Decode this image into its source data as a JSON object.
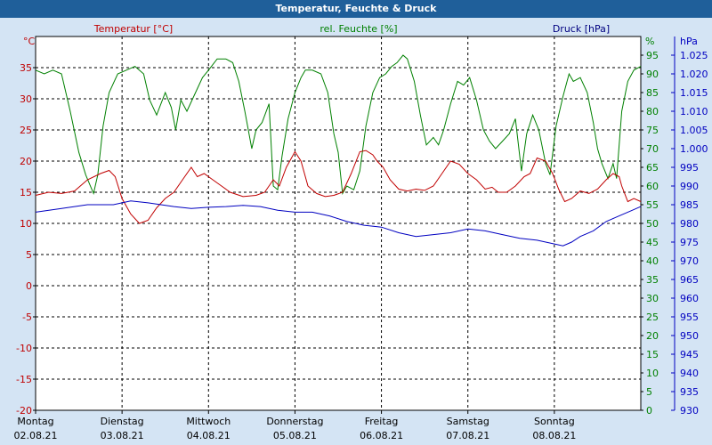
{
  "window": {
    "title": "Temperatur, Feuchte & Druck"
  },
  "chart_data": {
    "type": "line",
    "x_axis": {
      "range": [
        0,
        7
      ],
      "days": [
        "Montag",
        "Dienstag",
        "Mittwoch",
        "Donnerstag",
        "Freitag",
        "Samstag",
        "Sonntag"
      ],
      "dates": [
        "02.08.21",
        "03.08.21",
        "04.08.21",
        "05.08.21",
        "06.08.21",
        "07.08.21",
        "08.08.21"
      ]
    },
    "y_axes": {
      "temperature": {
        "label": "Temperatur [°C]",
        "unit": "°C",
        "range": [
          -20,
          40
        ],
        "ticks": [
          -20,
          -15,
          -10,
          -5,
          0,
          5,
          10,
          15,
          20,
          25,
          30,
          35
        ],
        "color": "#c00000"
      },
      "humidity": {
        "label": "rel. Feuchte [%]",
        "unit": "%",
        "range": [
          0,
          100
        ],
        "ticks": [
          0,
          5,
          10,
          15,
          20,
          25,
          30,
          35,
          40,
          45,
          50,
          55,
          60,
          65,
          70,
          75,
          80,
          85,
          90,
          95
        ],
        "color": "#008000"
      },
      "pressure": {
        "label": "Druck [hPa]",
        "unit": "hPa",
        "range": [
          930,
          1030
        ],
        "ticks": [
          "930",
          "935",
          "940",
          "945",
          "950",
          "955",
          "960",
          "965",
          "970",
          "975",
          "980",
          "985",
          "990",
          "995",
          "1.000",
          "1.005",
          "1.010",
          "1.015",
          "1.020",
          "1.025"
        ],
        "color": "#0000c0"
      }
    },
    "grid": true,
    "series": [
      {
        "name": "Temperatur [°C]",
        "axis": "temperature",
        "color": "#c00000",
        "points": [
          [
            0,
            14.5
          ],
          [
            0.15,
            15
          ],
          [
            0.3,
            14.8
          ],
          [
            0.45,
            15.2
          ],
          [
            0.6,
            17
          ],
          [
            0.75,
            18
          ],
          [
            0.85,
            18.5
          ],
          [
            0.92,
            17.5
          ],
          [
            1.0,
            14
          ],
          [
            1.1,
            11.5
          ],
          [
            1.2,
            10
          ],
          [
            1.3,
            10.5
          ],
          [
            1.4,
            12.5
          ],
          [
            1.5,
            14
          ],
          [
            1.6,
            15
          ],
          [
            1.7,
            17
          ],
          [
            1.8,
            19
          ],
          [
            1.87,
            17.5
          ],
          [
            1.95,
            18
          ],
          [
            2.05,
            17
          ],
          [
            2.15,
            16
          ],
          [
            2.25,
            15
          ],
          [
            2.4,
            14.3
          ],
          [
            2.55,
            14.5
          ],
          [
            2.65,
            15
          ],
          [
            2.75,
            17
          ],
          [
            2.82,
            16
          ],
          [
            2.9,
            19
          ],
          [
            3.0,
            21.5
          ],
          [
            3.07,
            20
          ],
          [
            3.15,
            16
          ],
          [
            3.25,
            14.8
          ],
          [
            3.35,
            14.3
          ],
          [
            3.45,
            14.5
          ],
          [
            3.55,
            15
          ],
          [
            3.65,
            18
          ],
          [
            3.75,
            21.5
          ],
          [
            3.82,
            21.7
          ],
          [
            3.9,
            21
          ],
          [
            3.95,
            20
          ],
          [
            4.02,
            19
          ],
          [
            4.1,
            17
          ],
          [
            4.2,
            15.5
          ],
          [
            4.3,
            15.2
          ],
          [
            4.4,
            15.5
          ],
          [
            4.5,
            15.3
          ],
          [
            4.6,
            16
          ],
          [
            4.7,
            18
          ],
          [
            4.8,
            20
          ],
          [
            4.9,
            19.5
          ],
          [
            5.0,
            18
          ],
          [
            5.1,
            17
          ],
          [
            5.2,
            15.5
          ],
          [
            5.28,
            15.8
          ],
          [
            5.35,
            15
          ],
          [
            5.45,
            15
          ],
          [
            5.55,
            16
          ],
          [
            5.65,
            17.5
          ],
          [
            5.72,
            18
          ],
          [
            5.8,
            20.5
          ],
          [
            5.9,
            20
          ],
          [
            5.98,
            18
          ],
          [
            6.05,
            15.5
          ],
          [
            6.12,
            13.5
          ],
          [
            6.2,
            14
          ],
          [
            6.3,
            15.2
          ],
          [
            6.4,
            14.8
          ],
          [
            6.5,
            15.5
          ],
          [
            6.6,
            17
          ],
          [
            6.68,
            18
          ],
          [
            6.75,
            17.5
          ],
          [
            6.78,
            16
          ],
          [
            6.85,
            13.5
          ],
          [
            6.92,
            14
          ],
          [
            7.0,
            13.5
          ]
        ]
      },
      {
        "name": "rel. Feuchte [%]",
        "axis": "humidity",
        "color": "#008000",
        "points": [
          [
            0,
            91
          ],
          [
            0.1,
            90
          ],
          [
            0.2,
            91
          ],
          [
            0.3,
            90
          ],
          [
            0.4,
            80
          ],
          [
            0.5,
            69
          ],
          [
            0.58,
            63
          ],
          [
            0.67,
            58
          ],
          [
            0.72,
            63
          ],
          [
            0.78,
            76
          ],
          [
            0.85,
            85
          ],
          [
            0.95,
            90
          ],
          [
            1.05,
            91
          ],
          [
            1.15,
            92
          ],
          [
            1.25,
            90
          ],
          [
            1.32,
            83
          ],
          [
            1.4,
            79
          ],
          [
            1.5,
            85
          ],
          [
            1.57,
            81
          ],
          [
            1.62,
            75
          ],
          [
            1.68,
            83
          ],
          [
            1.75,
            80
          ],
          [
            1.85,
            85
          ],
          [
            1.93,
            89
          ],
          [
            2.0,
            91
          ],
          [
            2.1,
            94
          ],
          [
            2.2,
            94
          ],
          [
            2.28,
            93
          ],
          [
            2.35,
            88
          ],
          [
            2.42,
            80
          ],
          [
            2.5,
            70
          ],
          [
            2.55,
            75
          ],
          [
            2.62,
            77
          ],
          [
            2.7,
            82
          ],
          [
            2.75,
            60
          ],
          [
            2.8,
            59
          ],
          [
            2.85,
            68
          ],
          [
            2.92,
            78
          ],
          [
            3.0,
            85
          ],
          [
            3.07,
            89
          ],
          [
            3.12,
            91
          ],
          [
            3.2,
            91
          ],
          [
            3.3,
            90
          ],
          [
            3.38,
            85
          ],
          [
            3.45,
            74
          ],
          [
            3.5,
            69
          ],
          [
            3.55,
            58
          ],
          [
            3.6,
            60
          ],
          [
            3.68,
            59
          ],
          [
            3.75,
            64
          ],
          [
            3.82,
            76
          ],
          [
            3.9,
            85
          ],
          [
            3.98,
            89
          ],
          [
            4.05,
            90
          ],
          [
            4.12,
            92
          ],
          [
            4.18,
            93
          ],
          [
            4.25,
            95
          ],
          [
            4.3,
            94
          ],
          [
            4.38,
            88
          ],
          [
            4.45,
            79
          ],
          [
            4.52,
            71
          ],
          [
            4.6,
            73
          ],
          [
            4.66,
            71
          ],
          [
            4.72,
            75
          ],
          [
            4.8,
            82
          ],
          [
            4.88,
            88
          ],
          [
            4.95,
            87
          ],
          [
            5.02,
            89
          ],
          [
            5.1,
            83
          ],
          [
            5.18,
            75
          ],
          [
            5.25,
            72
          ],
          [
            5.32,
            70
          ],
          [
            5.4,
            72
          ],
          [
            5.48,
            74
          ],
          [
            5.55,
            78
          ],
          [
            5.62,
            64
          ],
          [
            5.68,
            74
          ],
          [
            5.75,
            79
          ],
          [
            5.82,
            75
          ],
          [
            5.9,
            66
          ],
          [
            5.95,
            63
          ],
          [
            6.02,
            76
          ],
          [
            6.1,
            84
          ],
          [
            6.17,
            90
          ],
          [
            6.22,
            88
          ],
          [
            6.3,
            89
          ],
          [
            6.38,
            85
          ],
          [
            6.45,
            77
          ],
          [
            6.5,
            70
          ],
          [
            6.55,
            66
          ],
          [
            6.62,
            62
          ],
          [
            6.68,
            66
          ],
          [
            6.72,
            62
          ],
          [
            6.78,
            80
          ],
          [
            6.85,
            88
          ],
          [
            6.92,
            91
          ],
          [
            7.0,
            92
          ]
        ]
      },
      {
        "name": "Druck [hPa]",
        "axis": "pressure",
        "color": "#0000c0",
        "points": [
          [
            0,
            983
          ],
          [
            0.3,
            984
          ],
          [
            0.6,
            985
          ],
          [
            0.9,
            985
          ],
          [
            1.1,
            986
          ],
          [
            1.3,
            985.5
          ],
          [
            1.6,
            984.5
          ],
          [
            1.8,
            984
          ],
          [
            2.0,
            984.3
          ],
          [
            2.2,
            984.5
          ],
          [
            2.4,
            984.8
          ],
          [
            2.6,
            984.5
          ],
          [
            2.8,
            983.5
          ],
          [
            3.0,
            983
          ],
          [
            3.2,
            983
          ],
          [
            3.4,
            982
          ],
          [
            3.6,
            980.5
          ],
          [
            3.8,
            979.5
          ],
          [
            4.0,
            979
          ],
          [
            4.2,
            977.5
          ],
          [
            4.4,
            976.5
          ],
          [
            4.6,
            977
          ],
          [
            4.8,
            977.5
          ],
          [
            5.0,
            978.5
          ],
          [
            5.2,
            978
          ],
          [
            5.4,
            977
          ],
          [
            5.6,
            976
          ],
          [
            5.8,
            975.5
          ],
          [
            6.0,
            974.5
          ],
          [
            6.1,
            974
          ],
          [
            6.2,
            975
          ],
          [
            6.3,
            976.5
          ],
          [
            6.45,
            978
          ],
          [
            6.6,
            980.5
          ],
          [
            6.75,
            982
          ],
          [
            6.9,
            983.5
          ],
          [
            7.0,
            984.5
          ]
        ]
      }
    ]
  }
}
